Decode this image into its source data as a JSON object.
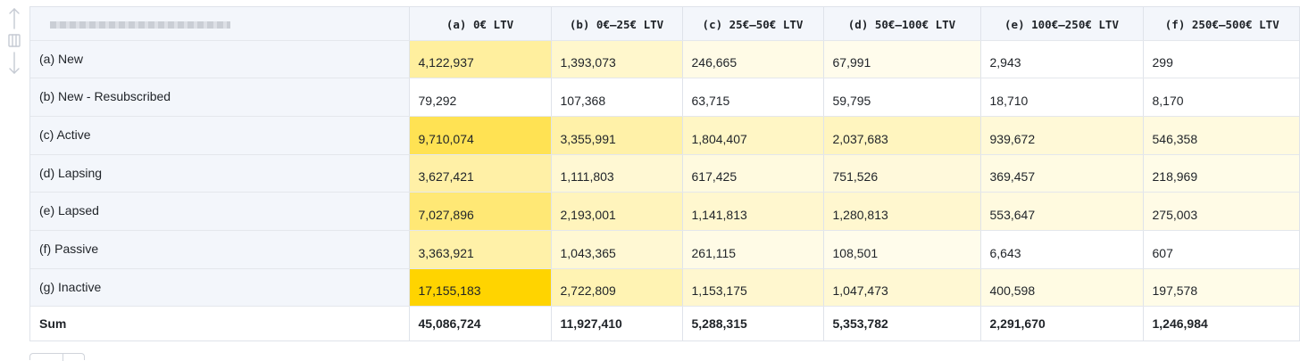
{
  "table": {
    "corner_header": "",
    "columns": [
      "(a) 0€ LTV",
      "(b) 0€–25€ LTV",
      "(c) 25€–50€ LTV",
      "(d) 50€–100€ LTV",
      "(e) 100€–250€ LTV",
      "(f) 250€–500€ LTV"
    ],
    "rows": [
      {
        "label": "(a) New",
        "values": [
          "4,122,937",
          "1,393,073",
          "246,665",
          "67,991",
          "2,943",
          "299"
        ],
        "heat": [
          0.24,
          0.08,
          0.015,
          0.004,
          0.0,
          0.0
        ]
      },
      {
        "label": "(b) New - Resubscribed",
        "values": [
          "79,292",
          "107,368",
          "63,715",
          "59,795",
          "18,710",
          "8,170"
        ],
        "heat": [
          0.0,
          0.0,
          0.0,
          0.0,
          0.0,
          0.0
        ]
      },
      {
        "label": "(c) Active",
        "values": [
          "9,710,074",
          "3,355,991",
          "1,804,407",
          "2,037,683",
          "939,672",
          "546,358"
        ],
        "heat": [
          0.57,
          0.2,
          0.1,
          0.12,
          0.05,
          0.03
        ]
      },
      {
        "label": "(d) Lapsing",
        "values": [
          "3,627,421",
          "1,111,803",
          "617,425",
          "751,526",
          "369,457",
          "218,969"
        ],
        "heat": [
          0.21,
          0.06,
          0.03,
          0.04,
          0.02,
          0.01
        ]
      },
      {
        "label": "(e) Lapsed",
        "values": [
          "7,027,896",
          "2,193,001",
          "1,141,813",
          "1,280,813",
          "553,647",
          "275,003"
        ],
        "heat": [
          0.41,
          0.13,
          0.07,
          0.07,
          0.03,
          0.015
        ]
      },
      {
        "label": "(f) Passive",
        "values": [
          "3,363,921",
          "1,043,365",
          "261,115",
          "108,501",
          "6,643",
          "607"
        ],
        "heat": [
          0.2,
          0.06,
          0.015,
          0.006,
          0.0,
          0.0
        ]
      },
      {
        "label": "(g) Inactive",
        "values": [
          "17,155,183",
          "2,722,809",
          "1,153,175",
          "1,047,473",
          "400,598",
          "197,578"
        ],
        "heat": [
          1.0,
          0.16,
          0.07,
          0.06,
          0.02,
          0.01
        ]
      }
    ],
    "sum": {
      "label": "Sum",
      "values": [
        "45,086,724",
        "11,927,410",
        "5,288,315",
        "5,353,782",
        "2,291,670",
        "1,246,984"
      ]
    }
  },
  "colors": {
    "heat_max": "#ffd400",
    "heat_min": "#fffdf0",
    "header_bg": "#f3f6fb",
    "border": "#dfe3ea"
  },
  "icons": {
    "drag_handle": "drag-handle-icon"
  }
}
